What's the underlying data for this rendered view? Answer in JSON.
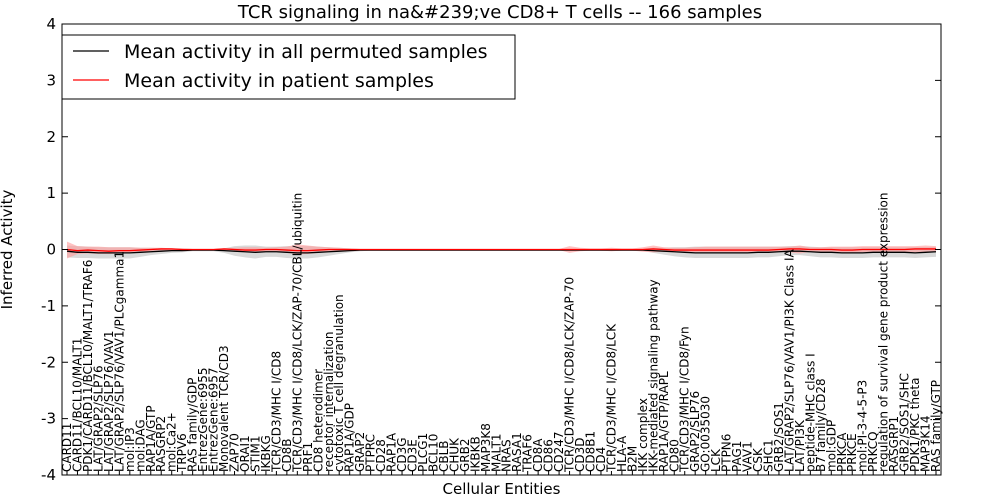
{
  "chart_data": {
    "type": "line",
    "title": "TCR signaling in na&#239;ve CD8+ T cells -- 166 samples",
    "xlabel": "Cellular Entities",
    "ylabel": "Inferred Activity",
    "ylim": [
      -4,
      4
    ],
    "yticks": [
      -4,
      -3,
      -2,
      -1,
      0,
      1,
      2,
      3,
      4
    ],
    "grid": false,
    "legend_position": "top-left",
    "categories": [
      "CARD11",
      "CARD11/BCL10/MALT1",
      "PDK1/CARD11/BCL10/MALT1/TRAF6",
      "LAT/GRAP2/SLP76",
      "LAT/GRAP2/SLP76/VAV1",
      "LAT/GRAP2/SLP76/VAV1/PLCgamma1",
      "mol:IP3",
      "mol:DAG",
      "RAP1A/GTP",
      "RASGRP2",
      "mol:Ca2+",
      "TRPV6",
      "RAS family/GDP",
      "EntrezGene:6955",
      "EntrezGene:6957",
      "Monovalent TCR/CD3",
      "ZAP70",
      "ORAI1",
      "STIM1",
      "IKBKG",
      "TCR/CD3/MHC I/CD8",
      "CD8B",
      "TCR/CD3/MHC I/CD8/LCK/ZAP-70/CBL/ubiquitin",
      "PRF1",
      "CD8 heterodimer",
      "receptor internalization",
      "cytotoxic T cell degranulation",
      "RAP1A/GDP",
      "GRAP2",
      "PTPRC",
      "CD28",
      "RAP1A",
      "CD3G",
      "CD3E",
      "PLCG1",
      "BCL10",
      "CBLB",
      "CHUK",
      "GRB2",
      "IKBKB",
      "MAP3K8",
      "MALT1",
      "NRAS",
      "RASA1",
      "TRAF6",
      "CD8A",
      "CD86",
      "CD247",
      "TCR/CD3/MHC I/CD8/LCK/ZAP-70",
      "CD3D",
      "CD8B1",
      "CD4",
      "TCR/CD3/MHC I/CD8/LCK",
      "HLA-A",
      "B2M",
      "IKK complex",
      "IKK-mediated signaling pathway",
      "RAP1A/GTP/RAPL",
      "CD80",
      "TCR/CD3/MHC I/CD8/Fyn",
      "GRAP2/SLP76",
      "GO:0035030",
      "LCK",
      "PTPN6",
      "PAG1",
      "VAV1",
      "CSK",
      "SHC1",
      "GRB2/SOS1",
      "LAT/GRAP2/SLP76/VAV1/PI3K Class IA",
      "LAT/PI3K",
      "peptide-MHC class I",
      "B7 family/CD28",
      "mol:GDP",
      "PRKCA",
      "PRKCE",
      "mol:PI-3-4-5-P3",
      "PRKCQ",
      "regulation of survival gene product expression",
      "RASGRP1",
      "GRB2/SOS1/SHC",
      "PDK1/PKC theta",
      "MAP3K14",
      "RAS family/GTP"
    ],
    "series": [
      {
        "name": "Mean activity in all permuted samples",
        "color": "#000000",
        "values": [
          -0.03,
          -0.05,
          -0.05,
          -0.06,
          -0.06,
          -0.06,
          -0.06,
          -0.05,
          -0.04,
          -0.03,
          -0.02,
          -0.02,
          -0.01,
          -0.01,
          -0.01,
          -0.02,
          -0.03,
          -0.04,
          -0.05,
          -0.04,
          -0.04,
          -0.05,
          -0.06,
          -0.06,
          -0.05,
          -0.04,
          -0.03,
          -0.02,
          -0.01,
          -0.01,
          -0.01,
          -0.01,
          -0.01,
          -0.01,
          -0.01,
          -0.01,
          -0.01,
          -0.01,
          -0.01,
          -0.01,
          -0.01,
          -0.01,
          -0.01,
          -0.01,
          -0.01,
          -0.01,
          -0.01,
          -0.01,
          -0.01,
          -0.01,
          -0.01,
          -0.01,
          -0.01,
          -0.01,
          -0.01,
          -0.01,
          -0.02,
          -0.03,
          -0.04,
          -0.05,
          -0.06,
          -0.06,
          -0.06,
          -0.06,
          -0.06,
          -0.06,
          -0.05,
          -0.05,
          -0.04,
          -0.03,
          -0.03,
          -0.04,
          -0.05,
          -0.05,
          -0.06,
          -0.06,
          -0.06,
          -0.05,
          -0.05,
          -0.05,
          -0.05,
          -0.06,
          -0.05,
          -0.04
        ]
      },
      {
        "name": "Mean activity in patient samples",
        "color": "#ff0000",
        "values": [
          0.0,
          -0.02,
          -0.01,
          -0.02,
          -0.03,
          -0.02,
          -0.02,
          -0.01,
          0.0,
          0.01,
          0.01,
          0.0,
          0.0,
          0.0,
          0.0,
          0.01,
          0.0,
          -0.01,
          -0.01,
          0.0,
          0.0,
          -0.01,
          -0.02,
          -0.02,
          -0.01,
          0.0,
          0.0,
          0.0,
          0.0,
          0.0,
          0.0,
          0.0,
          0.0,
          0.0,
          0.0,
          0.0,
          0.0,
          0.0,
          0.0,
          0.0,
          0.0,
          0.0,
          0.0,
          0.0,
          0.0,
          0.0,
          0.0,
          0.0,
          0.0,
          0.0,
          0.0,
          0.0,
          0.0,
          0.0,
          0.0,
          0.0,
          0.01,
          0.0,
          -0.01,
          -0.01,
          -0.01,
          -0.01,
          -0.01,
          -0.01,
          -0.01,
          -0.01,
          -0.01,
          -0.01,
          0.0,
          0.01,
          0.01,
          0.0,
          0.0,
          0.0,
          -0.01,
          -0.01,
          0.0,
          0.0,
          0.0,
          0.0,
          0.0,
          0.01,
          0.01,
          0.01
        ]
      }
    ],
    "bands": [
      {
        "of_series": "Mean activity in all permuted samples",
        "fill": "#cccccc",
        "upper": [
          0.07,
          0.06,
          0.05,
          0.04,
          0.04,
          0.04,
          0.04,
          0.03,
          0.03,
          0.02,
          0.02,
          0.02,
          0.01,
          0.01,
          0.01,
          0.02,
          0.06,
          0.07,
          0.07,
          0.05,
          0.05,
          0.06,
          0.06,
          0.06,
          0.05,
          0.04,
          0.03,
          0.02,
          0.01,
          0.01,
          0.01,
          0.01,
          0.01,
          0.01,
          0.01,
          0.01,
          0.01,
          0.01,
          0.01,
          0.01,
          0.01,
          0.01,
          0.01,
          0.01,
          0.01,
          0.01,
          0.01,
          0.01,
          0.01,
          0.01,
          0.01,
          0.01,
          0.01,
          0.01,
          0.01,
          0.01,
          0.03,
          0.03,
          0.04,
          0.04,
          0.05,
          0.05,
          0.05,
          0.05,
          0.05,
          0.05,
          0.05,
          0.05,
          0.05,
          0.06,
          0.06,
          0.05,
          0.04,
          0.04,
          0.04,
          0.04,
          0.04,
          0.04,
          0.04,
          0.04,
          0.04,
          0.04,
          0.04,
          0.04
        ],
        "lower": [
          -0.14,
          -0.15,
          -0.15,
          -0.16,
          -0.16,
          -0.16,
          -0.16,
          -0.13,
          -0.1,
          -0.08,
          -0.06,
          -0.05,
          -0.03,
          -0.03,
          -0.03,
          -0.06,
          -0.11,
          -0.14,
          -0.16,
          -0.13,
          -0.13,
          -0.15,
          -0.16,
          -0.16,
          -0.14,
          -0.11,
          -0.08,
          -0.05,
          -0.03,
          -0.02,
          -0.02,
          -0.02,
          -0.02,
          -0.02,
          -0.02,
          -0.02,
          -0.02,
          -0.02,
          -0.02,
          -0.02,
          -0.02,
          -0.02,
          -0.02,
          -0.02,
          -0.02,
          -0.02,
          -0.02,
          -0.02,
          -0.02,
          -0.02,
          -0.02,
          -0.02,
          -0.02,
          -0.02,
          -0.02,
          -0.02,
          -0.06,
          -0.09,
          -0.12,
          -0.14,
          -0.15,
          -0.15,
          -0.15,
          -0.15,
          -0.15,
          -0.15,
          -0.14,
          -0.14,
          -0.12,
          -0.1,
          -0.1,
          -0.12,
          -0.14,
          -0.14,
          -0.15,
          -0.15,
          -0.15,
          -0.14,
          -0.14,
          -0.14,
          -0.14,
          -0.15,
          -0.14,
          -0.13
        ]
      },
      {
        "of_series": "Mean activity in patient samples",
        "fill": "#ff9999",
        "upper": [
          0.14,
          0.06,
          0.05,
          0.05,
          0.04,
          0.04,
          0.04,
          0.03,
          0.03,
          0.03,
          0.02,
          0.02,
          0.01,
          0.01,
          0.01,
          0.02,
          0.03,
          0.04,
          0.04,
          0.03,
          0.04,
          0.05,
          0.09,
          0.07,
          0.05,
          0.04,
          0.03,
          0.02,
          0.01,
          0.01,
          0.01,
          0.01,
          0.01,
          0.01,
          0.01,
          0.01,
          0.01,
          0.01,
          0.01,
          0.01,
          0.01,
          0.01,
          0.01,
          0.01,
          0.01,
          0.01,
          0.01,
          0.01,
          0.06,
          0.03,
          0.02,
          0.02,
          0.03,
          0.02,
          0.02,
          0.04,
          0.07,
          0.04,
          0.03,
          0.03,
          0.04,
          0.05,
          0.05,
          0.05,
          0.05,
          0.05,
          0.05,
          0.05,
          0.05,
          0.05,
          0.07,
          0.04,
          0.04,
          0.05,
          0.05,
          0.05,
          0.06,
          0.06,
          0.06,
          0.06,
          0.06,
          0.06,
          0.07,
          0.06
        ],
        "lower": [
          -0.16,
          -0.08,
          -0.07,
          -0.08,
          -0.08,
          -0.07,
          -0.06,
          -0.05,
          -0.03,
          -0.02,
          -0.02,
          -0.02,
          -0.01,
          -0.01,
          -0.01,
          -0.02,
          -0.04,
          -0.05,
          -0.05,
          -0.03,
          -0.04,
          -0.06,
          -0.09,
          -0.08,
          -0.06,
          -0.04,
          -0.03,
          -0.02,
          -0.01,
          -0.01,
          -0.01,
          -0.01,
          -0.01,
          -0.01,
          -0.01,
          -0.01,
          -0.01,
          -0.01,
          -0.01,
          -0.01,
          -0.01,
          -0.01,
          -0.01,
          -0.01,
          -0.01,
          -0.01,
          -0.01,
          -0.01,
          -0.06,
          -0.03,
          -0.02,
          -0.02,
          -0.03,
          -0.02,
          -0.02,
          -0.04,
          -0.05,
          -0.04,
          -0.05,
          -0.05,
          -0.05,
          -0.05,
          -0.05,
          -0.05,
          -0.05,
          -0.05,
          -0.05,
          -0.05,
          -0.04,
          -0.05,
          -0.07,
          -0.04,
          -0.05,
          -0.05,
          -0.06,
          -0.06,
          -0.05,
          -0.05,
          -0.05,
          -0.05,
          -0.06,
          -0.05,
          -0.05,
          -0.04
        ]
      }
    ]
  }
}
